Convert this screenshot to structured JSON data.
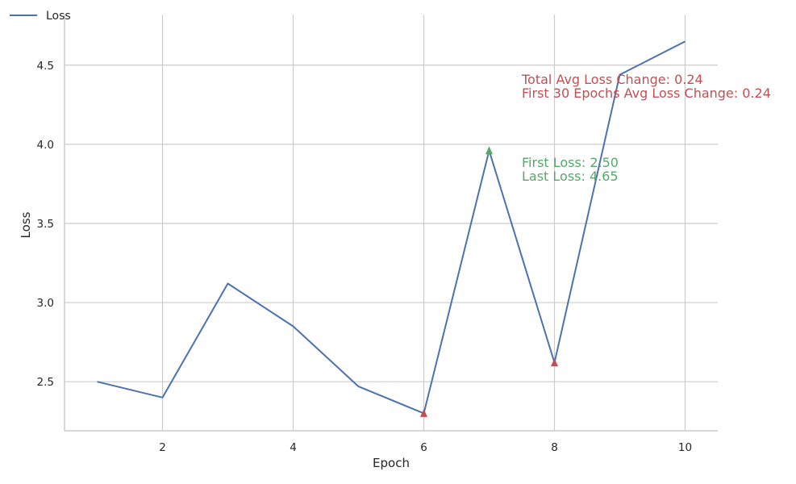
{
  "chart_data": {
    "type": "line",
    "title": "",
    "xlabel": "Epoch",
    "ylabel": "Loss",
    "xlim": [
      0.5,
      10.5
    ],
    "ylim": [
      2.19,
      4.82
    ],
    "xticks": [
      2,
      4,
      6,
      8,
      10
    ],
    "yticks": [
      2.5,
      3.0,
      3.5,
      4.0,
      4.5
    ],
    "xtick_labels": [
      "2",
      "4",
      "6",
      "8",
      "10"
    ],
    "ytick_labels": [
      "2.5",
      "3.0",
      "3.5",
      "4.0",
      "4.5"
    ],
    "grid": true,
    "legend_position": "top-left",
    "series": [
      {
        "name": "Loss",
        "color": "#4c72b0",
        "x": [
          1,
          2,
          3,
          4,
          5,
          6,
          7,
          8,
          9,
          10
        ],
        "y": [
          2.5,
          2.4,
          3.12,
          2.85,
          2.47,
          2.3,
          3.96,
          2.62,
          4.44,
          4.65
        ]
      }
    ],
    "markers": [
      {
        "kind": "local-min",
        "x": 6,
        "y": 2.3,
        "color": "#c44e52"
      },
      {
        "kind": "local-max",
        "x": 7,
        "y": 3.96,
        "color": "#55a868"
      },
      {
        "kind": "local-min",
        "x": 8,
        "y": 2.62,
        "color": "#c44e52"
      }
    ],
    "annotations": [
      {
        "text": "Total Avg Loss Change: 0.24",
        "color": "#c44e52"
      },
      {
        "text": "First 30 Epochs Avg Loss Change: 0.24",
        "color": "#c44e52"
      },
      {
        "text": "First Loss: 2.50",
        "color": "#55a868"
      },
      {
        "text": "Last Loss: 4.65",
        "color": "#55a868"
      }
    ]
  }
}
